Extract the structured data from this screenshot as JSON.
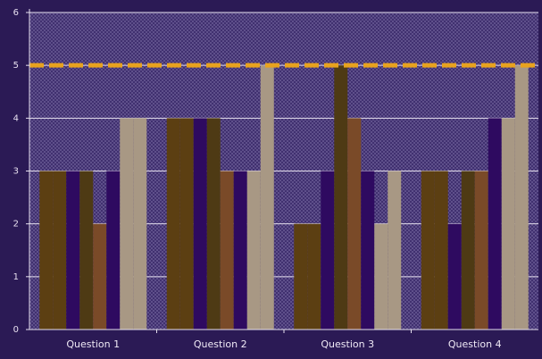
{
  "chart_data": {
    "type": "bar",
    "title": "",
    "xlabel": "",
    "ylabel": "",
    "ylim": [
      0,
      6
    ],
    "yticks": [
      0,
      1,
      2,
      3,
      4,
      5,
      6
    ],
    "grid": true,
    "categories": [
      "Question 1",
      "Question 2",
      "Question 3",
      "Question 4"
    ],
    "series": [
      {
        "color": "#5c3f12",
        "values": [
          3,
          4,
          2,
          3
        ]
      },
      {
        "color": "#5c3f12",
        "values": [
          3,
          4,
          2,
          3
        ]
      },
      {
        "color": "#2e0a60",
        "values": [
          3,
          4,
          3,
          2
        ]
      },
      {
        "color": "#4e3a14",
        "values": [
          3,
          4,
          5,
          3
        ]
      },
      {
        "color": "#7a4a28",
        "values": [
          2,
          3,
          4,
          3
        ]
      },
      {
        "color": "#2e0a60",
        "values": [
          3,
          3,
          3,
          4
        ]
      },
      {
        "color": "#a89884",
        "values": [
          4,
          3,
          2,
          4
        ]
      },
      {
        "color": "#a89884",
        "values": [
          4,
          5,
          3,
          5
        ]
      }
    ],
    "reference_line": {
      "value": 5,
      "color": "#e8a21e"
    }
  }
}
